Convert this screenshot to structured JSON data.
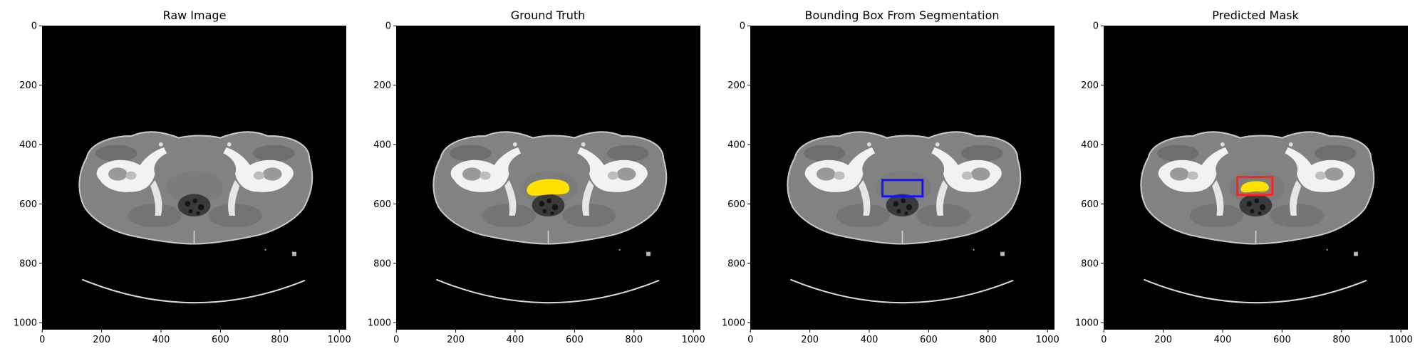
{
  "colors": {
    "ground_truth_mask": "#ffe200",
    "segmentation_box": "#1010ff",
    "predicted_box": "#ff2020",
    "background": "#000000"
  },
  "x_ticks": [
    "0",
    "200",
    "400",
    "600",
    "800",
    "1000"
  ],
  "y_ticks": [
    "0",
    "200",
    "400",
    "600",
    "800",
    "1000"
  ],
  "panels": [
    {
      "title": "Raw Image"
    },
    {
      "title": "Ground Truth"
    },
    {
      "title": "Bounding Box From Segmentation"
    },
    {
      "title": "Predicted Mask"
    }
  ]
}
